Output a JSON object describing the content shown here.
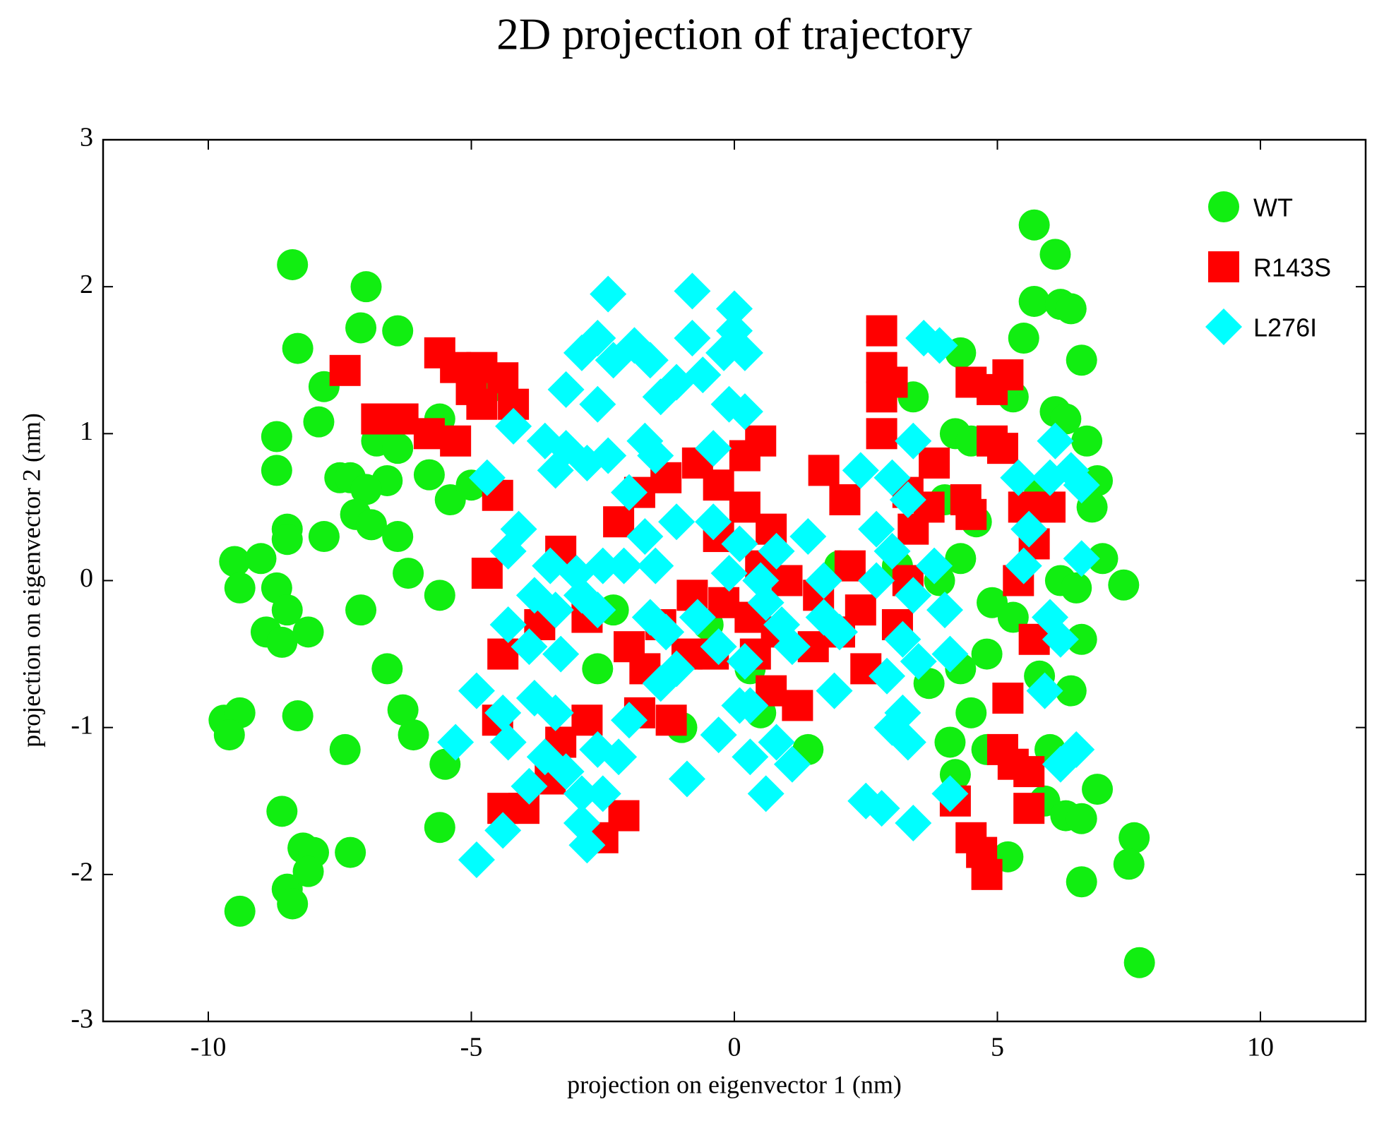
{
  "chart_data": {
    "type": "scatter",
    "title": "2D projection of trajectory",
    "xlabel": "projection on eigenvector 1 (nm)",
    "ylabel": "projection on eigenvector 2 (nm)",
    "xlim": [
      -12,
      12
    ],
    "ylim": [
      -3,
      3
    ],
    "xticks": [
      -10,
      -5,
      0,
      5,
      10
    ],
    "yticks": [
      -3,
      -2,
      -1,
      0,
      1,
      2,
      3
    ],
    "legend": "upper right",
    "series": [
      {
        "name": "WT",
        "color": "#11ee11",
        "marker": "circle",
        "x": [
          -8.4,
          -7,
          -7.1,
          -6.4,
          -8.3,
          -7.8,
          -7.9,
          -8.7,
          -8.7,
          -7.5,
          -7.3,
          -6.6,
          -7,
          -5.8,
          -5.4,
          -5,
          -6.8,
          -6.4,
          -5.6,
          -4.7,
          -8.5,
          -8.5,
          -7.8,
          -7.2,
          -6.9,
          -6.4,
          -6.2,
          -9.5,
          -9.0,
          -9.4,
          -8.7,
          -8.5,
          -8.9,
          -8.6,
          -8.1,
          -7.1,
          -5.6,
          -6.6,
          -6.3,
          -6.1,
          -9.7,
          -9.4,
          -9.6,
          -8.3,
          -7.4,
          -5.5,
          -8.6,
          -5.6,
          -8.2,
          -8.0,
          -7.3,
          -8.5,
          -8.4,
          -8.1,
          -9.4,
          5.7,
          6.1,
          5.7,
          6.2,
          6.4,
          5.5,
          6.6,
          4.3,
          5.3,
          6.1,
          6.3,
          6.7,
          4.2,
          4.5,
          6.9,
          5.8,
          4.0,
          4.6,
          6.8,
          7.0,
          7.4,
          6.2,
          6.5,
          4.3,
          3.9,
          4.9,
          5.3,
          6.6,
          4.8,
          4.3,
          3.7,
          4.5,
          5.8,
          6.4,
          4.1,
          4.8,
          6.0,
          5.9,
          6.3,
          6.6,
          6.9,
          4.2,
          7.6,
          7.5,
          5.2,
          6.6,
          7.7,
          -2.6,
          -1.0,
          0.3,
          -0.5,
          1.4,
          0.5,
          3.1,
          2.0,
          -2.3,
          3.4
        ],
        "values": [
          2.15,
          2.0,
          1.72,
          1.7,
          1.58,
          1.32,
          1.08,
          0.98,
          0.75,
          0.7,
          0.7,
          0.68,
          0.62,
          0.72,
          0.55,
          0.65,
          0.95,
          0.9,
          1.1,
          1.3,
          0.35,
          0.28,
          0.3,
          0.45,
          0.38,
          0.3,
          0.05,
          0.13,
          0.15,
          -0.05,
          -0.05,
          -0.2,
          -0.35,
          -0.42,
          -0.35,
          -0.2,
          -0.1,
          -0.6,
          -0.88,
          -1.05,
          -0.95,
          -0.9,
          -1.05,
          -0.92,
          -1.15,
          -1.25,
          -1.57,
          -1.68,
          -1.82,
          -1.85,
          -1.85,
          -2.1,
          -2.2,
          -1.98,
          -2.25,
          2.42,
          2.22,
          1.9,
          1.88,
          1.85,
          1.65,
          1.5,
          1.55,
          1.25,
          1.15,
          1.1,
          0.95,
          1.0,
          0.95,
          0.68,
          0.6,
          0.55,
          0.4,
          0.5,
          0.15,
          -0.03,
          0.0,
          -0.05,
          0.15,
          0.0,
          -0.15,
          -0.25,
          -0.4,
          -0.5,
          -0.6,
          -0.7,
          -0.9,
          -0.65,
          -0.75,
          -1.1,
          -1.15,
          -1.15,
          -1.5,
          -1.6,
          -1.62,
          -1.42,
          -1.32,
          -1.75,
          -1.93,
          -1.88,
          -2.05,
          -2.6,
          -0.6,
          -1.0,
          -0.6,
          -0.3,
          -1.15,
          -0.9,
          0.1,
          0.1,
          -0.2,
          1.25
        ]
      },
      {
        "name": "R143S",
        "color": "#ff0000",
        "marker": "square",
        "x": [
          -7.4,
          -6.8,
          -6.3,
          -5.8,
          -5.3,
          -5.6,
          -5.3,
          -4.8,
          -4.4,
          -4.2,
          -4.8,
          -5.0,
          -4.5,
          -4.7,
          -4.4,
          -3.7,
          -3.3,
          -2.8,
          -2.2,
          -1.8,
          -1.3,
          -0.7,
          -0.3,
          0.2,
          0.5,
          0.2,
          0.7,
          -0.3,
          0.5,
          1.0,
          1.6,
          2.2,
          2.4,
          2.0,
          1.5,
          0.8,
          0.3,
          -0.2,
          -0.8,
          -1.4,
          -2.0,
          -1.7,
          -0.9,
          -0.4,
          0.4,
          0.7,
          1.2,
          -1.2,
          -1.8,
          -2.8,
          -3.3,
          -4.5,
          -4.4,
          -4.0,
          -3.5,
          -2.5,
          -2.1,
          1.7,
          2.1,
          2.5,
          2.8,
          2.8,
          2.8,
          3.0,
          2.8,
          3.3,
          3.8,
          3.4,
          3.3,
          4.5,
          4.9,
          5.2,
          4.9,
          5.1,
          4.4,
          4.5,
          5.5,
          6.0,
          5.7,
          5.4,
          5.7,
          5.2,
          5.1,
          5.6,
          5.3,
          5.6,
          4.2,
          4.5,
          4.7,
          4.8,
          3.7,
          3.1
        ],
        "values": [
          1.43,
          1.1,
          1.1,
          1.0,
          0.95,
          1.55,
          1.45,
          1.45,
          1.38,
          1.2,
          1.2,
          1.3,
          0.58,
          0.05,
          -0.5,
          -0.3,
          0.2,
          -0.25,
          0.4,
          0.6,
          0.7,
          0.8,
          0.65,
          0.85,
          0.95,
          0.5,
          0.35,
          0.3,
          0.1,
          0.0,
          -0.1,
          0.1,
          -0.2,
          -0.35,
          -0.45,
          -0.35,
          -0.25,
          -0.15,
          -0.1,
          -0.3,
          -0.45,
          -0.6,
          -0.5,
          -0.5,
          -0.5,
          -0.75,
          -0.85,
          -0.95,
          -0.9,
          -0.95,
          -1.1,
          -0.95,
          -1.55,
          -1.55,
          -1.35,
          -1.75,
          -1.6,
          0.75,
          0.55,
          -0.6,
          1.7,
          1.45,
          1.25,
          1.35,
          1.0,
          0.6,
          0.8,
          0.35,
          0.0,
          1.35,
          1.3,
          1.4,
          0.95,
          0.9,
          0.55,
          0.45,
          0.5,
          0.5,
          0.25,
          0.0,
          -0.4,
          -0.8,
          -1.15,
          -1.3,
          -1.25,
          -1.55,
          -1.5,
          -1.75,
          -1.85,
          -2.0,
          0.5,
          -0.3
        ]
      },
      {
        "name": "L276I",
        "color": "#00ffff",
        "marker": "diamond",
        "x": [
          -2.4,
          -0.8,
          0.0,
          0.0,
          -2.9,
          -2.6,
          -2.3,
          -1.9,
          -1.6,
          -0.8,
          -0.2,
          0.2,
          -3.2,
          -2.6,
          -1.4,
          -1.1,
          -0.6,
          -0.1,
          0.2,
          -4.2,
          -3.6,
          -3.2,
          -2.8,
          -2.4,
          -1.7,
          -1.5,
          -3.4,
          -0.4,
          -4.7,
          -4.1,
          -4.3,
          -3.5,
          -3.0,
          -2.5,
          -2.1,
          -1.7,
          -1.5,
          -1.1,
          -0.4,
          0.1,
          -0.1,
          0.8,
          1.4,
          -3.8,
          -3.4,
          -2.9,
          -2.6,
          -4.3,
          -3.9,
          -3.3,
          -1.6,
          -1.3,
          -0.7,
          -0.3,
          0.2,
          0.6,
          0.9,
          1.1,
          1.7,
          2.0,
          1.7,
          -1.1,
          -1.4,
          0.3,
          -4.9,
          -4.4,
          -3.8,
          -3.4,
          -4.3,
          -3.6,
          -3.2,
          -2.6,
          -2.2,
          -2.0,
          -5.3,
          -3.9,
          -2.9,
          -2.5,
          -4.4,
          -2.9,
          -2.8,
          -4.9,
          -0.9,
          -0.3,
          0.1,
          0.3,
          0.8,
          1.1,
          0.6,
          1.9,
          2.4,
          2.7,
          3.0,
          3.3,
          3.0,
          2.7,
          3.4,
          3.8,
          4.0,
          3.2,
          3.5,
          4.1,
          2.9,
          3.2,
          3.3,
          3.0,
          2.5,
          2.8,
          3.4,
          4.1,
          3.4,
          3.6,
          3.9,
          5.4,
          6.1,
          6.0,
          6.4,
          6.6,
          5.6,
          5.5,
          6.6,
          6.0,
          6.2,
          5.9,
          6.2,
          6.5,
          0.5,
          -2.0
        ],
        "values": [
          1.95,
          1.97,
          1.85,
          1.7,
          1.55,
          1.65,
          1.5,
          1.6,
          1.5,
          1.65,
          1.55,
          1.55,
          1.3,
          1.2,
          1.25,
          1.35,
          1.4,
          1.2,
          1.15,
          1.05,
          0.95,
          0.9,
          0.8,
          0.85,
          0.95,
          0.85,
          0.75,
          0.9,
          0.7,
          0.35,
          0.2,
          0.1,
          0.05,
          0.1,
          0.1,
          0.3,
          0.1,
          0.4,
          0.4,
          0.25,
          0.05,
          0.2,
          0.3,
          -0.1,
          -0.2,
          -0.1,
          -0.2,
          -0.3,
          -0.45,
          -0.5,
          -0.25,
          -0.35,
          -0.25,
          -0.45,
          -0.55,
          -0.15,
          -0.3,
          -0.45,
          -0.25,
          -0.35,
          0.0,
          -0.6,
          -0.7,
          -0.85,
          -0.75,
          -0.9,
          -0.8,
          -0.9,
          -1.1,
          -1.2,
          -1.3,
          -1.15,
          -1.2,
          -0.95,
          -1.1,
          -1.4,
          -1.45,
          -1.45,
          -1.7,
          -1.65,
          -1.8,
          -1.9,
          -1.35,
          -1.05,
          -0.85,
          -1.2,
          -1.1,
          -1.25,
          -1.45,
          -0.75,
          0.75,
          0.35,
          0.7,
          0.55,
          0.2,
          0.0,
          -0.1,
          0.1,
          -0.2,
          -0.4,
          -0.55,
          -0.5,
          -0.65,
          -0.9,
          -1.1,
          -1.0,
          -1.5,
          -1.55,
          -1.65,
          -1.45,
          0.95,
          1.65,
          1.6,
          0.7,
          0.95,
          0.7,
          0.75,
          0.65,
          0.35,
          0.1,
          0.15,
          -0.25,
          -0.4,
          -0.75,
          -1.25,
          -1.15,
          0.0,
          0.6
        ]
      }
    ]
  }
}
